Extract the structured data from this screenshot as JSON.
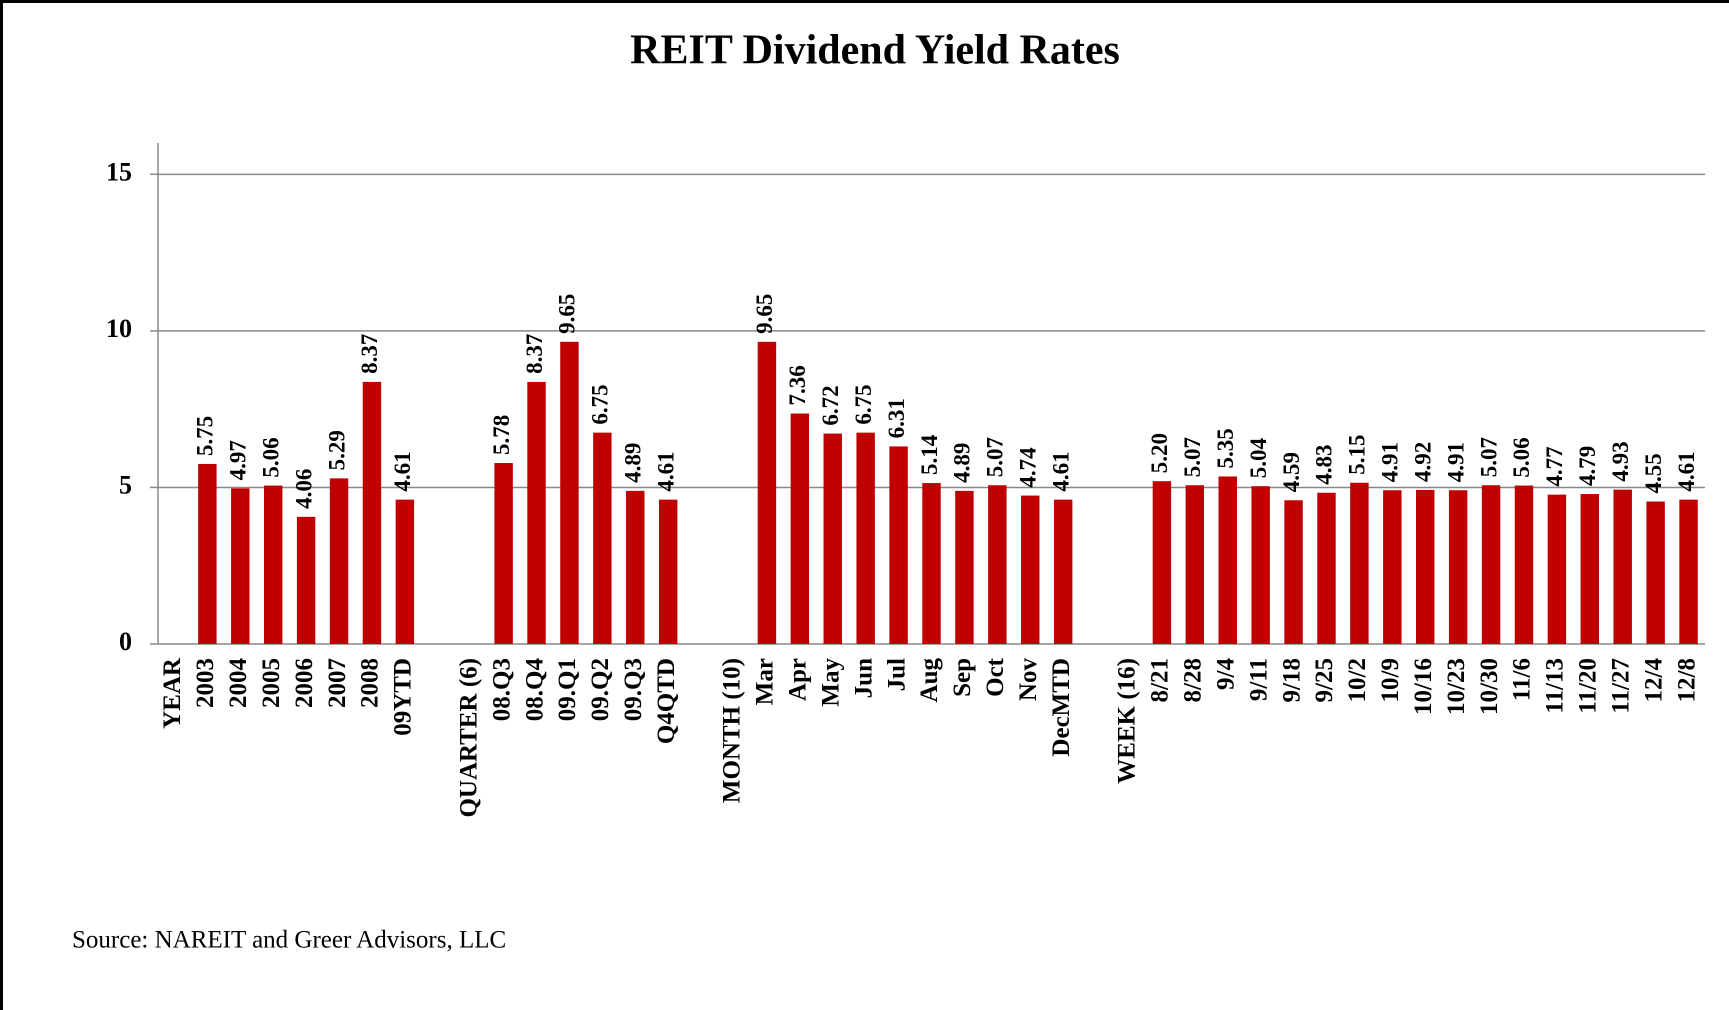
{
  "chart_data": {
    "type": "bar",
    "title": "REIT Dividend Yield Rates",
    "source": "Source: NAREIT and Greer Advisors, LLC",
    "categories": [
      "YEAR",
      "2003",
      "2004",
      "2005",
      "2006",
      "2007",
      "2008",
      "09YTD",
      null,
      "QUARTER (6)",
      "08.Q3",
      "08.Q4",
      "09.Q1",
      "09.Q2",
      "09.Q3",
      "Q4QTD",
      null,
      "MONTH (10)",
      "Mar",
      "Apr",
      "May",
      "Jun",
      "Jul",
      "Aug",
      "Sep",
      "Oct",
      "Nov",
      "DecMTD",
      null,
      "WEEK (16)",
      "8/21",
      "8/28",
      "9/4",
      "9/11",
      "9/18",
      "9/25",
      "10/2",
      "10/9",
      "10/16",
      "10/23",
      "10/30",
      "11/6",
      "11/13",
      "11/20",
      "11/27",
      "12/4",
      "12/8"
    ],
    "values": [
      null,
      5.75,
      4.97,
      5.06,
      4.06,
      5.29,
      8.37,
      4.61,
      null,
      null,
      5.78,
      8.37,
      9.65,
      6.75,
      4.89,
      4.61,
      null,
      null,
      9.65,
      7.36,
      6.72,
      6.75,
      6.31,
      5.14,
      4.89,
      5.07,
      4.74,
      4.61,
      null,
      null,
      5.2,
      5.07,
      5.35,
      5.04,
      4.59,
      4.83,
      5.15,
      4.91,
      4.92,
      4.91,
      5.07,
      5.06,
      4.77,
      4.79,
      4.93,
      4.55,
      4.61
    ],
    "value_labels": [
      null,
      "5.75",
      "4.97",
      "5.06",
      "4.06",
      "5.29",
      "8.37",
      "4.61",
      null,
      null,
      "5.78",
      "8.37",
      "9.65",
      "6.75",
      "4.89",
      "4.61",
      null,
      null,
      "9.65",
      "7.36",
      "6.72",
      "6.75",
      "6.31",
      "5.14",
      "4.89",
      "5.07",
      "4.74",
      "4.61",
      null,
      null,
      "5.20",
      "5.07",
      "5.35",
      "5.04",
      "4.59",
      "4.83",
      "5.15",
      "4.91",
      "4.92",
      "4.91",
      "5.07",
      "5.06",
      "4.77",
      "4.79",
      "4.93",
      "4.55",
      "4.61"
    ],
    "color": "#c00000",
    "ylim": [
      0,
      16
    ],
    "yticks": [
      0,
      5,
      10,
      15
    ],
    "grid": true
  }
}
